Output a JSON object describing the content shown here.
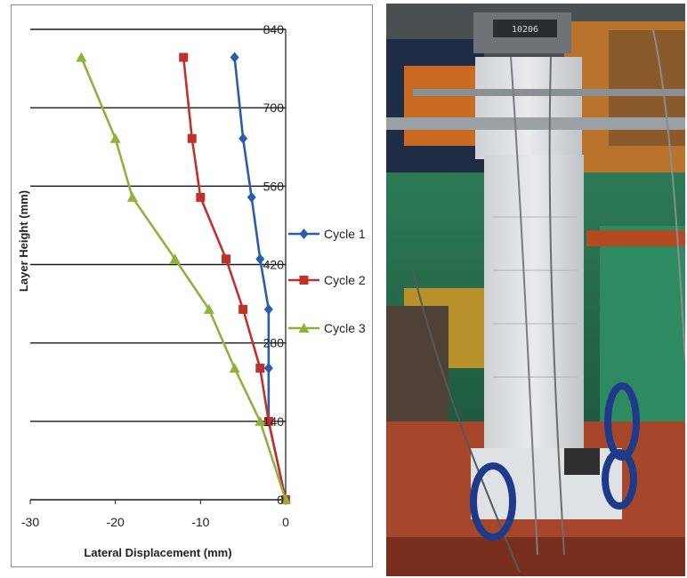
{
  "chart_data": {
    "type": "line",
    "xlabel": "Lateral Displacement (mm)",
    "ylabel": "Layer Height (mm)",
    "xlim": [
      -30,
      0
    ],
    "ylim": [
      0,
      840
    ],
    "x_ticks": [
      "-30",
      "-20",
      "-10",
      "0"
    ],
    "y_ticks": [
      "0",
      "140",
      "280",
      "420",
      "560",
      "700",
      "840"
    ],
    "grid": "horizontal",
    "legend_position": "right",
    "series": [
      {
        "name": "Cycle 1",
        "color": "#2a5db0",
        "marker": "diamond",
        "points": [
          [
            0,
            0
          ],
          [
            -2,
            140
          ],
          [
            -2,
            235
          ],
          [
            -2,
            340
          ],
          [
            -3,
            430
          ],
          [
            -4,
            540
          ],
          [
            -5,
            645
          ],
          [
            -6,
            790
          ]
        ]
      },
      {
        "name": "Cycle 2",
        "color": "#c0312b",
        "marker": "square",
        "points": [
          [
            0,
            0
          ],
          [
            -2,
            140
          ],
          [
            -3,
            235
          ],
          [
            -5,
            340
          ],
          [
            -7,
            430
          ],
          [
            -10,
            540
          ],
          [
            -11,
            645
          ],
          [
            -12,
            790
          ]
        ]
      },
      {
        "name": "Cycle 3",
        "color": "#8db33a",
        "marker": "triangle",
        "points": [
          [
            0,
            0
          ],
          [
            -3,
            140
          ],
          [
            -6,
            235
          ],
          [
            -9,
            340
          ],
          [
            -13,
            430
          ],
          [
            -18,
            540
          ],
          [
            -20,
            645
          ],
          [
            -24,
            790
          ]
        ]
      }
    ]
  },
  "photo": {
    "meter_display": "10206"
  }
}
